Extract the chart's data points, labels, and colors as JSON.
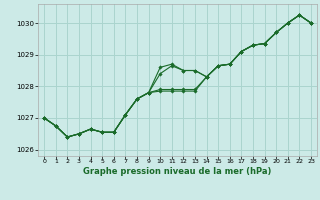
{
  "background_color": "#cceae7",
  "grid_color": "#aad4ce",
  "line_color": "#1a6b2a",
  "title": "Graphe pression niveau de la mer (hPa)",
  "xlim": [
    -0.5,
    23.5
  ],
  "ylim": [
    1025.8,
    1030.6
  ],
  "yticks": [
    1026,
    1027,
    1028,
    1029,
    1030
  ],
  "xticks": [
    0,
    1,
    2,
    3,
    4,
    5,
    6,
    7,
    8,
    9,
    10,
    11,
    12,
    13,
    14,
    15,
    16,
    17,
    18,
    19,
    20,
    21,
    22,
    23
  ],
  "line1": [
    1027.0,
    1026.75,
    1026.4,
    1026.5,
    1026.65,
    1026.55,
    1026.55,
    1027.1,
    1027.6,
    1027.8,
    1028.6,
    1028.7,
    1028.5,
    1028.5,
    1028.3,
    1028.65,
    1028.7,
    1029.1,
    1029.3,
    1029.35,
    1029.7,
    1030.0,
    1030.25,
    1030.0
  ],
  "line2": [
    1027.0,
    1026.75,
    1026.4,
    1026.5,
    1026.65,
    1026.55,
    1026.55,
    1027.1,
    1027.6,
    1027.8,
    1027.85,
    1027.85,
    1027.85,
    1027.85,
    1028.3,
    1028.65,
    1028.7,
    1029.1,
    1029.3,
    1029.35,
    1029.7,
    1030.0,
    1030.25,
    1030.0
  ],
  "line3": [
    1027.0,
    1026.75,
    1026.4,
    1026.5,
    1026.65,
    1026.55,
    1026.55,
    1027.1,
    1027.6,
    1027.8,
    1027.9,
    1027.9,
    1027.9,
    1027.9,
    1028.3,
    1028.65,
    1028.7,
    1029.1,
    1029.3,
    1029.35,
    1029.7,
    1030.0,
    1030.25,
    1030.0
  ],
  "line4": [
    1027.0,
    1026.75,
    1026.4,
    1026.5,
    1026.65,
    1026.55,
    1026.55,
    1027.1,
    1027.6,
    1027.8,
    1028.4,
    1028.65,
    1028.5,
    1028.5,
    1028.3,
    1028.65,
    1028.7,
    1029.1,
    1029.3,
    1029.35,
    1029.7,
    1030.0,
    1030.25,
    1030.0
  ]
}
